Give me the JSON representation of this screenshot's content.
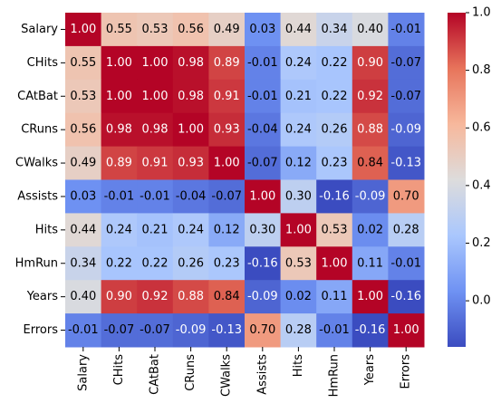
{
  "chart_data": {
    "type": "heatmap",
    "categories": [
      "Salary",
      "CHits",
      "CAtBat",
      "CRuns",
      "CWalks",
      "Assists",
      "Hits",
      "HmRun",
      "Years",
      "Errors"
    ],
    "values": [
      [
        1.0,
        0.55,
        0.53,
        0.56,
        0.49,
        0.03,
        0.44,
        0.34,
        0.4,
        -0.01
      ],
      [
        0.55,
        1.0,
        1.0,
        0.98,
        0.89,
        -0.01,
        0.24,
        0.22,
        0.9,
        -0.07
      ],
      [
        0.53,
        1.0,
        1.0,
        0.98,
        0.91,
        -0.01,
        0.21,
        0.22,
        0.92,
        -0.07
      ],
      [
        0.56,
        0.98,
        0.98,
        1.0,
        0.93,
        -0.04,
        0.24,
        0.26,
        0.88,
        -0.09
      ],
      [
        0.49,
        0.89,
        0.91,
        0.93,
        1.0,
        -0.07,
        0.12,
        0.23,
        0.84,
        -0.13
      ],
      [
        0.03,
        -0.01,
        -0.01,
        -0.04,
        -0.07,
        1.0,
        0.3,
        -0.16,
        -0.09,
        0.7
      ],
      [
        0.44,
        0.24,
        0.21,
        0.24,
        0.12,
        0.3,
        1.0,
        0.53,
        0.02,
        0.28
      ],
      [
        0.34,
        0.22,
        0.22,
        0.26,
        0.23,
        -0.16,
        0.53,
        1.0,
        0.11,
        -0.01
      ],
      [
        0.4,
        0.9,
        0.92,
        0.88,
        0.84,
        -0.09,
        0.02,
        0.11,
        1.0,
        -0.16
      ],
      [
        -0.01,
        -0.07,
        -0.07,
        -0.09,
        -0.13,
        0.7,
        0.28,
        -0.01,
        -0.16,
        1.0
      ]
    ],
    "value_labels": [
      [
        "1.00",
        "0.55",
        "0.53",
        "0.56",
        "0.49",
        "0.03",
        "0.44",
        "0.34",
        "0.40",
        "-0.01"
      ],
      [
        "0.55",
        "1.00",
        "1.00",
        "0.98",
        "0.89",
        "-0.01",
        "0.24",
        "0.22",
        "0.90",
        "-0.07"
      ],
      [
        "0.53",
        "1.00",
        "1.00",
        "0.98",
        "0.91",
        "-0.01",
        "0.21",
        "0.22",
        "0.92",
        "-0.07"
      ],
      [
        "0.56",
        "0.98",
        "0.98",
        "1.00",
        "0.93",
        "-0.04",
        "0.24",
        "0.26",
        "0.88",
        "-0.09"
      ],
      [
        "0.49",
        "0.89",
        "0.91",
        "0.93",
        "1.00",
        "-0.07",
        "0.12",
        "0.23",
        "0.84",
        "-0.13"
      ],
      [
        "0.03",
        "-0.01",
        "-0.01",
        "-0.04",
        "-0.07",
        "1.00",
        "0.30",
        "-0.16",
        "-0.09",
        "0.70"
      ],
      [
        "0.44",
        "0.24",
        "0.21",
        "0.24",
        "0.12",
        "0.30",
        "1.00",
        "0.53",
        "0.02",
        "0.28"
      ],
      [
        "0.34",
        "0.22",
        "0.22",
        "0.26",
        "0.23",
        "-0.16",
        "0.53",
        "1.00",
        "0.11",
        "-0.01"
      ],
      [
        "0.40",
        "0.90",
        "0.92",
        "0.88",
        "0.84",
        "-0.09",
        "0.02",
        "0.11",
        "1.00",
        "-0.16"
      ],
      [
        "-0.01",
        "-0.07",
        "-0.07",
        "-0.09",
        "-0.13",
        "0.70",
        "0.28",
        "-0.01",
        "-0.16",
        "1.00"
      ]
    ],
    "clim": [
      -0.16,
      1.0
    ],
    "colormap": [
      "#3b4cc0",
      "#6f92f3",
      "#aac7fd",
      "#dddcdc",
      "#f7b89c",
      "#e7745b",
      "#b40426"
    ],
    "yticks": [
      {
        "value": 0.0,
        "label": "0.0"
      },
      {
        "value": 0.2,
        "label": "0.2"
      },
      {
        "value": 0.4,
        "label": "0.4"
      },
      {
        "value": 0.6,
        "label": "0.6"
      },
      {
        "value": 0.8,
        "label": "0.8"
      },
      {
        "value": 1.0,
        "label": "1.0"
      }
    ]
  }
}
